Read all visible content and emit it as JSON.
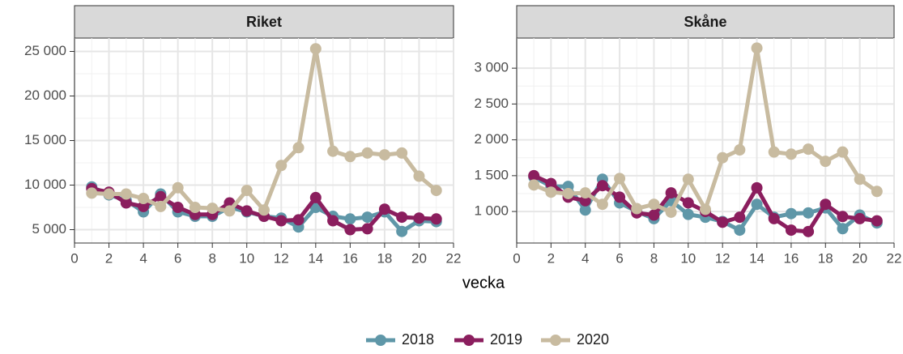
{
  "chart_data": [
    {
      "type": "line",
      "title": "Riket",
      "x": [
        1,
        2,
        3,
        4,
        5,
        6,
        7,
        8,
        9,
        10,
        11,
        12,
        13,
        14,
        15,
        16,
        17,
        18,
        19,
        20,
        21
      ],
      "series": [
        {
          "name": "2018",
          "color": "#5f97a8",
          "values": [
            9800,
            8900,
            8300,
            7000,
            9000,
            7000,
            6500,
            6500,
            7500,
            7000,
            6500,
            6300,
            5300,
            7500,
            6500,
            6200,
            6400,
            7000,
            4800,
            6000,
            5900
          ]
        },
        {
          "name": "2019",
          "color": "#8b1e5e",
          "values": [
            9600,
            9200,
            8000,
            7600,
            8700,
            7500,
            6700,
            6700,
            8000,
            7100,
            6500,
            6000,
            6100,
            8600,
            6000,
            5000,
            5100,
            7300,
            6400,
            6300,
            6200
          ]
        },
        {
          "name": "2020",
          "color": "#c8bba0",
          "values": [
            9100,
            9000,
            9000,
            8500,
            7600,
            9700,
            7500,
            7400,
            7100,
            9400,
            7200,
            12200,
            14200,
            25300,
            13800,
            13200,
            13600,
            13400,
            13600,
            11000,
            9400
          ]
        }
      ],
      "xlim": [
        0,
        22
      ],
      "xticks": [
        0,
        2,
        4,
        6,
        8,
        10,
        12,
        14,
        16,
        18,
        20,
        22
      ],
      "ylim": [
        3500,
        26500
      ],
      "yticks": [
        {
          "value": 5000,
          "label": "5 000"
        },
        {
          "value": 10000,
          "label": "10 000"
        },
        {
          "value": 15000,
          "label": "15 000"
        },
        {
          "value": 20000,
          "label": "20 000"
        },
        {
          "value": 25000,
          "label": "25 000"
        }
      ],
      "grid": true,
      "x_label": "vecka"
    },
    {
      "type": "line",
      "title": "Skåne",
      "x": [
        1,
        2,
        3,
        4,
        5,
        6,
        7,
        8,
        9,
        10,
        11,
        12,
        13,
        14,
        15,
        16,
        17,
        18,
        19,
        20,
        21
      ],
      "series": [
        {
          "name": "2018",
          "color": "#5f97a8",
          "values": [
            1480,
            1350,
            1350,
            1020,
            1450,
            1120,
            1000,
            900,
            1150,
            960,
            920,
            860,
            740,
            1100,
            920,
            970,
            980,
            1050,
            760,
            950,
            840
          ]
        },
        {
          "name": "2019",
          "color": "#8b1e5e",
          "values": [
            1500,
            1390,
            1200,
            1150,
            1360,
            1200,
            980,
            950,
            1260,
            1120,
            1000,
            850,
            920,
            1330,
            900,
            740,
            720,
            1100,
            930,
            900,
            870
          ]
        },
        {
          "name": "2020",
          "color": "#c8bba0",
          "values": [
            1370,
            1270,
            1250,
            1260,
            1100,
            1460,
            1040,
            1100,
            990,
            1450,
            1030,
            1750,
            1860,
            3280,
            1830,
            1800,
            1870,
            1700,
            1830,
            1450,
            1280
          ]
        }
      ],
      "xlim": [
        0,
        22
      ],
      "xticks": [
        0,
        2,
        4,
        6,
        8,
        10,
        12,
        14,
        16,
        18,
        20,
        22
      ],
      "ylim": [
        560,
        3420
      ],
      "yticks": [
        {
          "value": 1000,
          "label": "1 000"
        },
        {
          "value": 1500,
          "label": "1 500"
        },
        {
          "value": 2000,
          "label": "2 000"
        },
        {
          "value": 2500,
          "label": "2 500"
        },
        {
          "value": 3000,
          "label": "3 000"
        }
      ],
      "grid": true
    }
  ]
}
